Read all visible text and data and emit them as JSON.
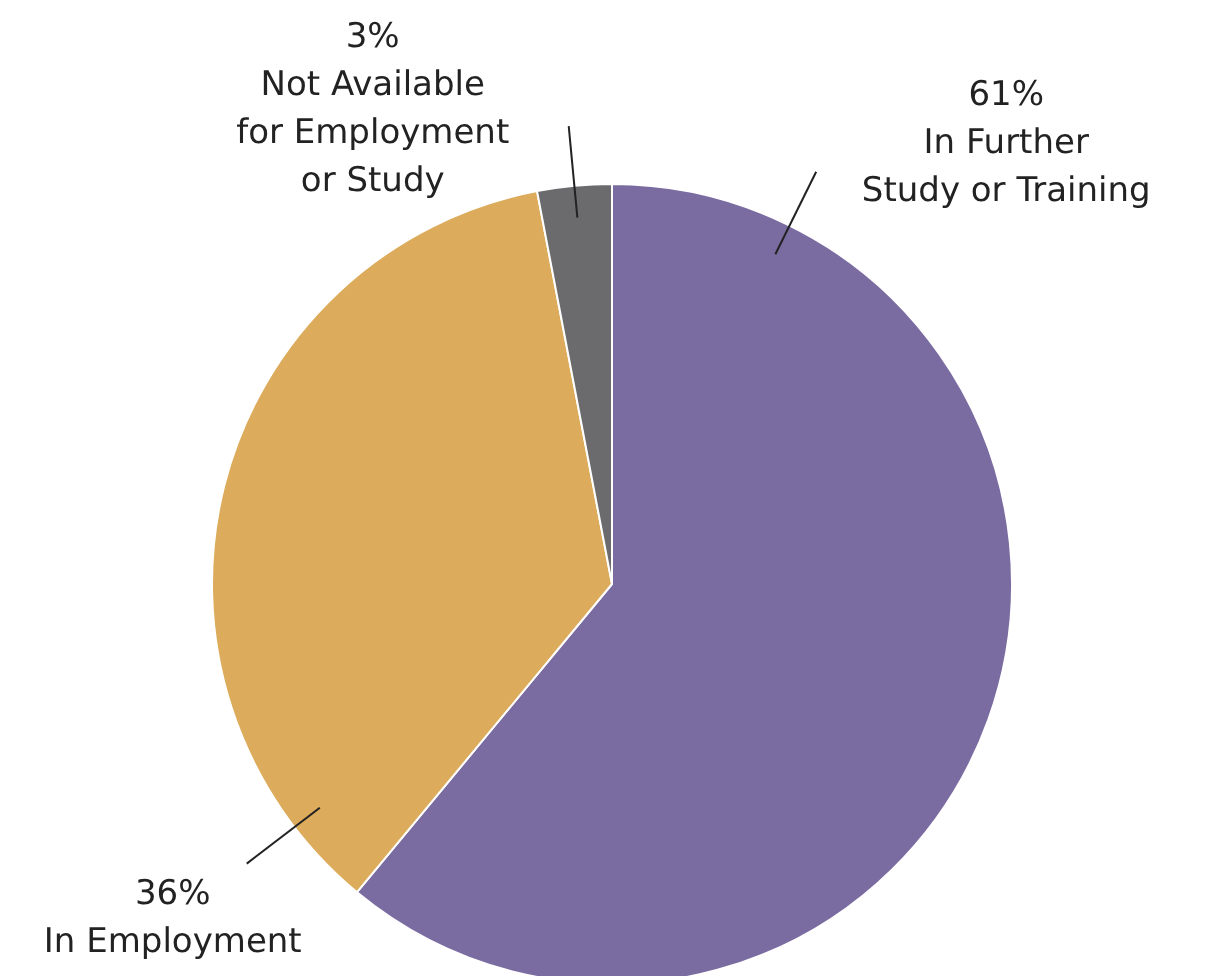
{
  "chart_data": {
    "type": "pie",
    "categories": [
      "In Further\nStudy or Training",
      "In Employment",
      "Not Available\nfor Employment\nor Study"
    ],
    "values": [
      61,
      36,
      3
    ],
    "colors": [
      "#7a6ba1",
      "#dcab5b",
      "#6b6a6d"
    ],
    "value_labels": [
      "61%",
      "36%",
      "3%"
    ],
    "legend": false
  }
}
